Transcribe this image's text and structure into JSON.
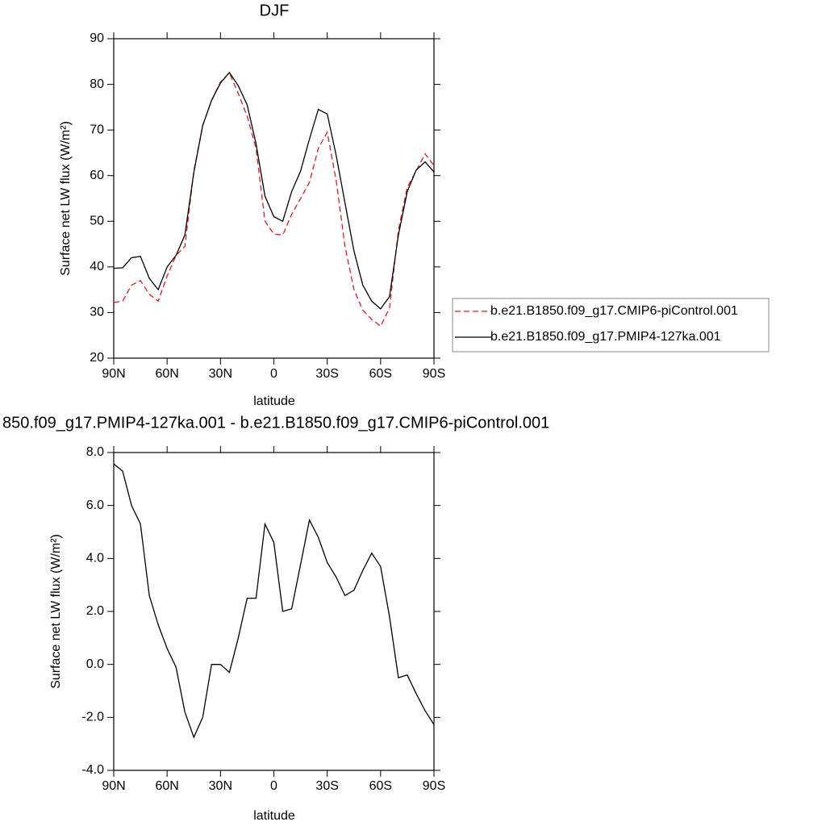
{
  "chart_data": [
    {
      "type": "line",
      "title": "DJF",
      "xlabel": "latitude",
      "ylabel": "Surface net LW flux (W/m²)",
      "x": [
        90,
        85,
        80,
        75,
        70,
        65,
        60,
        55,
        50,
        45,
        40,
        35,
        30,
        25,
        20,
        15,
        10,
        5,
        0,
        -5,
        -10,
        -15,
        -20,
        -25,
        -30,
        -35,
        -40,
        -45,
        -50,
        -55,
        -60,
        -65,
        -70,
        -75,
        -80,
        -85,
        -90
      ],
      "series": [
        {
          "name": "b.e21.B1850.f09_g17.CMIP6-piControl.001",
          "color": "#e8191c",
          "style": "dashed",
          "values": [
            32.2,
            32.5,
            36,
            37,
            34,
            32.5,
            38,
            42.5,
            44.5,
            61,
            71,
            76.5,
            80.5,
            82.5,
            78,
            73,
            66,
            50,
            47.2,
            47,
            51.5,
            55,
            58.5,
            66,
            69.5,
            59,
            44.5,
            35,
            30.5,
            28.5,
            27,
            31,
            48,
            57.5,
            61,
            64.8,
            62.2
          ]
        },
        {
          "name": "b.e21.B1850.f09_g17.PMIP4-127ka.001",
          "color": "#000000",
          "style": "solid",
          "values": [
            39.7,
            39.8,
            42,
            42.3,
            37.5,
            35,
            40,
            42.5,
            47,
            60.7,
            71,
            76.5,
            80.3,
            82.6,
            79.7,
            75.5,
            67,
            55.5,
            51,
            50,
            56.5,
            61,
            68,
            74.5,
            73.5,
            64.5,
            54,
            43.5,
            36,
            32.5,
            30.8,
            33.5,
            47,
            56.5,
            61.2,
            63,
            60.8
          ]
        }
      ],
      "xlim": [
        90,
        -90
      ],
      "xticks": [
        {
          "value": 90,
          "label": "90N"
        },
        {
          "value": 60,
          "label": "60N"
        },
        {
          "value": 30,
          "label": "30N"
        },
        0,
        {
          "value": -30,
          "label": "30S"
        },
        {
          "value": -60,
          "label": "60S"
        },
        {
          "value": -90,
          "label": "90S"
        }
      ],
      "ylim": [
        20,
        90
      ],
      "yticks": [
        20,
        30,
        40,
        50,
        60,
        70,
        80,
        90
      ],
      "legend": "right"
    },
    {
      "type": "line",
      "title": "850.f09_g17.PMIP4-127ka.001 - b.e21.B1850.f09_g17.CMIP6-piControl.001",
      "xlabel": "latitude",
      "ylabel": "Surface net LW flux (W/m²)",
      "x": [
        90,
        85,
        80,
        75,
        70,
        65,
        60,
        55,
        50,
        45,
        40,
        35,
        30,
        25,
        20,
        15,
        10,
        5,
        0,
        -5,
        -10,
        -15,
        -20,
        -25,
        -30,
        -35,
        -40,
        -45,
        -50,
        -55,
        -60,
        -65,
        -70,
        -75,
        -80,
        -85,
        -90
      ],
      "series": [
        {
          "color": "#000000",
          "style": "solid",
          "values": [
            7.57,
            7.3,
            6.0,
            5.3,
            2.6,
            1.5,
            0.6,
            -0.1,
            -1.8,
            -2.75,
            -2.0,
            0.0,
            0.0,
            -0.3,
            1.0,
            2.5,
            2.5,
            5.3,
            4.6,
            2.0,
            2.1,
            3.77,
            5.45,
            4.8,
            3.85,
            3.3,
            2.6,
            2.8,
            3.55,
            4.2,
            3.7,
            1.8,
            -0.5,
            -0.4,
            -1.1,
            -1.75,
            -2.27
          ]
        }
      ],
      "xlim": [
        90,
        -90
      ],
      "xticks": [
        {
          "value": 90,
          "label": "90N"
        },
        {
          "value": 60,
          "label": "60N"
        },
        {
          "value": 30,
          "label": "30N"
        },
        0,
        {
          "value": -30,
          "label": "30S"
        },
        {
          "value": -60,
          "label": "60S"
        },
        {
          "value": -90,
          "label": "90S"
        }
      ],
      "ylim": [
        -4,
        8
      ],
      "yticks": [
        {
          "value": -4,
          "label": "-4.0"
        },
        {
          "value": -2,
          "label": "-2.0"
        },
        {
          "value": 0,
          "label": "0.0"
        },
        {
          "value": 2,
          "label": "2.0"
        },
        {
          "value": 4,
          "label": "4.0"
        },
        {
          "value": 6,
          "label": "6.0"
        },
        {
          "value": 8,
          "label": "8.0"
        }
      ]
    }
  ]
}
